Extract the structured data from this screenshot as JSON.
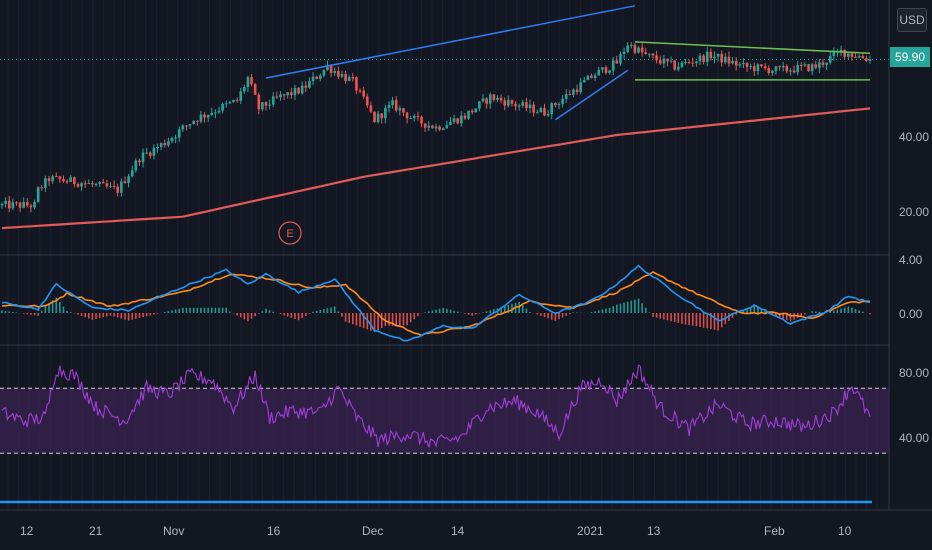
{
  "currency_button": "USD",
  "last_price": "59.90",
  "colors": {
    "background": "#131722",
    "up": "#26a69a",
    "down": "#ef5350",
    "ma": "#e35a5a",
    "blue_trend": "#2e7cf6",
    "green_channel": "#6fbf55",
    "macd": "#2196f3",
    "signal": "#ff8c1a",
    "rsi": "#a23ed8",
    "rsi_band": "#3a2352",
    "hline": "#2196f3"
  },
  "earnings_marker": "E",
  "chart_data": [
    {
      "type": "candlestick",
      "panel": "price",
      "yticks": [
        "20.00",
        "40.00"
      ],
      "ylim": [
        8,
        68
      ],
      "x_tick_labels": [
        "12",
        "21",
        "Nov",
        "16",
        "Dec",
        "14",
        "2021",
        "13",
        "Feb",
        "10"
      ],
      "close_series": [
        {
          "t": 0,
          "v": 21.5
        },
        {
          "t": 9,
          "v": 21.5
        },
        {
          "t": 10,
          "v": 25.5
        },
        {
          "t": 13,
          "v": 28.5
        },
        {
          "t": 22,
          "v": 27.5
        },
        {
          "t": 32,
          "v": 25.5
        },
        {
          "t": 38,
          "v": 34
        },
        {
          "t": 45,
          "v": 38
        },
        {
          "t": 53,
          "v": 44
        },
        {
          "t": 60,
          "v": 47
        },
        {
          "t": 65,
          "v": 49
        },
        {
          "t": 68,
          "v": 55
        },
        {
          "t": 71,
          "v": 47
        },
        {
          "t": 77,
          "v": 50
        },
        {
          "t": 83,
          "v": 52
        },
        {
          "t": 90,
          "v": 58
        },
        {
          "t": 97,
          "v": 54
        },
        {
          "t": 103,
          "v": 44
        },
        {
          "t": 108,
          "v": 48
        },
        {
          "t": 114,
          "v": 44
        },
        {
          "t": 120,
          "v": 42
        },
        {
          "t": 128,
          "v": 45
        },
        {
          "t": 135,
          "v": 50
        },
        {
          "t": 142,
          "v": 48
        },
        {
          "t": 150,
          "v": 46
        },
        {
          "t": 157,
          "v": 51
        },
        {
          "t": 164,
          "v": 56
        },
        {
          "t": 170,
          "v": 59
        },
        {
          "t": 173,
          "v": 64
        },
        {
          "t": 178,
          "v": 61
        },
        {
          "t": 186,
          "v": 58
        },
        {
          "t": 196,
          "v": 61
        },
        {
          "t": 205,
          "v": 58
        },
        {
          "t": 215,
          "v": 57
        },
        {
          "t": 225,
          "v": 58
        },
        {
          "t": 232,
          "v": 62
        },
        {
          "t": 240,
          "v": 59.9
        }
      ],
      "moving_average": [
        {
          "t": 0,
          "v": 15.5
        },
        {
          "t": 50,
          "v": 18.5
        },
        {
          "t": 100,
          "v": 29
        },
        {
          "t": 170,
          "v": 40
        },
        {
          "t": 240,
          "v": 47
        }
      ],
      "trendlines": [
        {
          "name": "upper-trend",
          "color": "blue",
          "from": {
            "t": 73,
            "v": 55
          },
          "to": {
            "t": 175,
            "v": 74
          }
        },
        {
          "name": "short-up-trend",
          "color": "blue",
          "from": {
            "t": 153,
            "v": 44
          },
          "to": {
            "t": 173,
            "v": 57
          }
        },
        {
          "name": "channel-top",
          "color": "green",
          "from": {
            "t": 175,
            "v": 64.5
          },
          "to": {
            "t": 240,
            "v": 61.5
          }
        },
        {
          "name": "channel-bottom",
          "color": "green",
          "from": {
            "t": 175,
            "v": 54.5
          },
          "to": {
            "t": 240,
            "v": 54.5
          }
        }
      ]
    },
    {
      "type": "line+histogram",
      "panel": "macd",
      "yticks": [
        "4.00",
        "0.00"
      ],
      "ylim": [
        -3,
        4.3
      ],
      "macd": [
        {
          "t": 0,
          "v": 0.8
        },
        {
          "t": 10,
          "v": 0.3
        },
        {
          "t": 15,
          "v": 2.2
        },
        {
          "t": 25,
          "v": 0.4
        },
        {
          "t": 35,
          "v": 0.2
        },
        {
          "t": 50,
          "v": 2.0
        },
        {
          "t": 62,
          "v": 3.3
        },
        {
          "t": 68,
          "v": 2.2
        },
        {
          "t": 73,
          "v": 3.0
        },
        {
          "t": 82,
          "v": 1.6
        },
        {
          "t": 92,
          "v": 2.6
        },
        {
          "t": 103,
          "v": -1.3
        },
        {
          "t": 112,
          "v": -2.2
        },
        {
          "t": 122,
          "v": -1.0
        },
        {
          "t": 130,
          "v": -1.2
        },
        {
          "t": 143,
          "v": 1.4
        },
        {
          "t": 153,
          "v": 0.0
        },
        {
          "t": 162,
          "v": 0.8
        },
        {
          "t": 168,
          "v": 1.8
        },
        {
          "t": 176,
          "v": 3.6
        },
        {
          "t": 188,
          "v": 1.2
        },
        {
          "t": 198,
          "v": -0.6
        },
        {
          "t": 208,
          "v": 0.6
        },
        {
          "t": 218,
          "v": -0.8
        },
        {
          "t": 228,
          "v": 0.1
        },
        {
          "t": 234,
          "v": 1.3
        },
        {
          "t": 240,
          "v": 0.8
        }
      ],
      "signal": [
        {
          "t": 0,
          "v": 0.6
        },
        {
          "t": 12,
          "v": 0.5
        },
        {
          "t": 18,
          "v": 1.5
        },
        {
          "t": 30,
          "v": 0.5
        },
        {
          "t": 50,
          "v": 1.6
        },
        {
          "t": 63,
          "v": 3.0
        },
        {
          "t": 75,
          "v": 2.6
        },
        {
          "t": 86,
          "v": 1.9
        },
        {
          "t": 95,
          "v": 2.2
        },
        {
          "t": 106,
          "v": -0.6
        },
        {
          "t": 116,
          "v": -1.7
        },
        {
          "t": 130,
          "v": -1.0
        },
        {
          "t": 146,
          "v": 0.9
        },
        {
          "t": 158,
          "v": 0.4
        },
        {
          "t": 170,
          "v": 1.6
        },
        {
          "t": 180,
          "v": 3.1
        },
        {
          "t": 192,
          "v": 1.5
        },
        {
          "t": 204,
          "v": 0.0
        },
        {
          "t": 214,
          "v": 0.0
        },
        {
          "t": 224,
          "v": -0.4
        },
        {
          "t": 234,
          "v": 0.8
        },
        {
          "t": 240,
          "v": 0.9
        }
      ]
    },
    {
      "type": "line",
      "panel": "rsi",
      "yticks": [
        "80.00",
        "40.00"
      ],
      "ylim": [
        17,
        92
      ],
      "bands": [
        70,
        30
      ],
      "hline": 0,
      "rsi": [
        {
          "t": 0,
          "v": 55
        },
        {
          "t": 6,
          "v": 50
        },
        {
          "t": 12,
          "v": 52
        },
        {
          "t": 15,
          "v": 82
        },
        {
          "t": 20,
          "v": 78
        },
        {
          "t": 26,
          "v": 58
        },
        {
          "t": 34,
          "v": 50
        },
        {
          "t": 40,
          "v": 70
        },
        {
          "t": 46,
          "v": 66
        },
        {
          "t": 52,
          "v": 78
        },
        {
          "t": 58,
          "v": 75
        },
        {
          "t": 64,
          "v": 58
        },
        {
          "t": 70,
          "v": 78
        },
        {
          "t": 74,
          "v": 52
        },
        {
          "t": 80,
          "v": 56
        },
        {
          "t": 88,
          "v": 55
        },
        {
          "t": 93,
          "v": 70
        },
        {
          "t": 98,
          "v": 52
        },
        {
          "t": 104,
          "v": 38
        },
        {
          "t": 112,
          "v": 42
        },
        {
          "t": 120,
          "v": 36
        },
        {
          "t": 127,
          "v": 40
        },
        {
          "t": 134,
          "v": 58
        },
        {
          "t": 142,
          "v": 62
        },
        {
          "t": 148,
          "v": 55
        },
        {
          "t": 154,
          "v": 42
        },
        {
          "t": 160,
          "v": 70
        },
        {
          "t": 166,
          "v": 75
        },
        {
          "t": 170,
          "v": 62
        },
        {
          "t": 176,
          "v": 82
        },
        {
          "t": 182,
          "v": 58
        },
        {
          "t": 190,
          "v": 45
        },
        {
          "t": 198,
          "v": 60
        },
        {
          "t": 206,
          "v": 48
        },
        {
          "t": 214,
          "v": 50
        },
        {
          "t": 222,
          "v": 46
        },
        {
          "t": 230,
          "v": 55
        },
        {
          "t": 235,
          "v": 72
        },
        {
          "t": 240,
          "v": 52
        }
      ]
    }
  ]
}
